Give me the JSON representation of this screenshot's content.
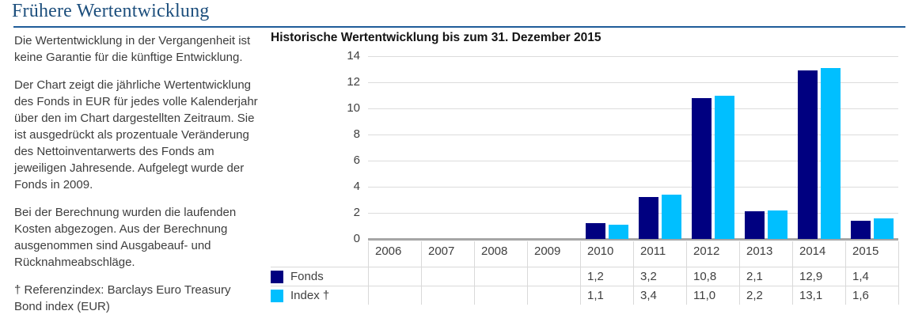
{
  "page_title": "Frühere Wertentwicklung",
  "left_panel": {
    "paragraphs": [
      "Die Wertentwicklung in der Vergangenheit ist keine Garantie für die künftige Entwicklung.",
      "Der Chart zeigt die jährliche Wertentwicklung des Fonds in EUR für jedes volle Kalenderjahr über den im Chart dargestellten Zeitraum. Sie ist ausgedrückt als prozentuale Veränderung des Nettoinventarwerts des Fonds am jeweiligen Jahresende. Aufgelegt wurde der Fonds in 2009.",
      "Bei der Berechnung wurden die laufenden Kosten abgezogen. Aus der Berechnung ausgenommen sind Ausgabeauf- und Rücknahmeabschläge.",
      "† Referenzindex: Barclays Euro Treasury Bond index (EUR)"
    ]
  },
  "chart_data": {
    "type": "bar",
    "title": "Historische Wertentwicklung bis zum 31. Dezember 2015",
    "categories": [
      "2006",
      "2007",
      "2008",
      "2009",
      "2010",
      "2011",
      "2012",
      "2013",
      "2014",
      "2015"
    ],
    "series": [
      {
        "name": "Fonds",
        "color": "#000080",
        "values": [
          null,
          null,
          null,
          null,
          1.2,
          3.2,
          10.8,
          2.1,
          12.9,
          1.4
        ],
        "display": [
          "",
          "",
          "",
          "",
          "1,2",
          "3,2",
          "10,8",
          "2,1",
          "12,9",
          "1,4"
        ]
      },
      {
        "name": "Index †",
        "color": "#00BFFF",
        "values": [
          null,
          null,
          null,
          null,
          1.1,
          3.4,
          11.0,
          2.2,
          13.1,
          1.6
        ],
        "display": [
          "",
          "",
          "",
          "",
          "1,1",
          "3,4",
          "11,0",
          "2,2",
          "13,1",
          "1,6"
        ]
      }
    ],
    "ylim": [
      0,
      14
    ],
    "yticks": [
      0,
      2,
      4,
      6,
      8,
      10,
      12,
      14
    ],
    "grid": true,
    "legend_position": "table-left"
  },
  "colors": {
    "title_blue": "#1C4E7C",
    "rule_blue": "#1F5C99",
    "fonds_navy": "#000080",
    "index_cyan": "#00BFFF",
    "gridline": "#DCDCDC",
    "axis_gray": "#A6A6A6",
    "table_line": "#D9D9D9",
    "body_text": "#3D3D3D"
  }
}
